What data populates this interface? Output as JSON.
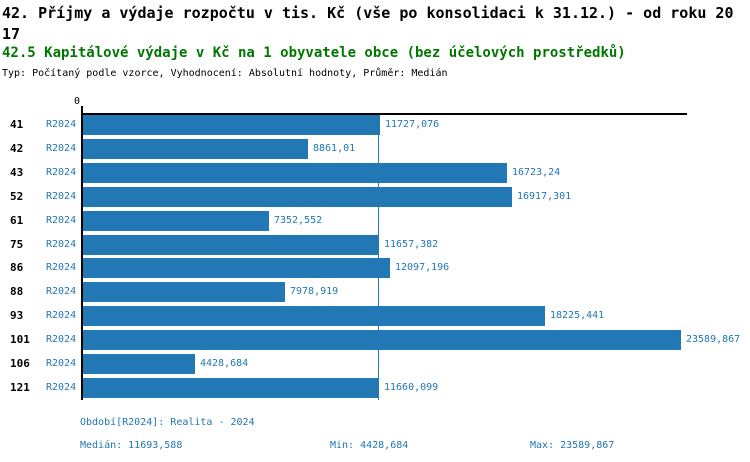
{
  "header": {
    "title": "42. Příjmy a výdaje rozpočtu v tis. Kč (vše po konsolidaci k 31.12.) - od roku 2017",
    "indicator": "42.5 Kapitálové výdaje v Kč na 1 obyvatele obce (bez účelových prostředků)",
    "meta": "Typ: Počítaný podle vzorce, Vyhodnocení: Absolutní hodnoty, Průměr: Medián"
  },
  "chart_data": {
    "type": "bar",
    "orientation": "horizontal",
    "title": "42.5 Kapitálové výdaje v Kč na 1 obyvatele obce (bez účelových prostředků)",
    "categories": [
      "41",
      "42",
      "43",
      "52",
      "61",
      "75",
      "86",
      "88",
      "93",
      "101",
      "106",
      "121"
    ],
    "series_label": "R2024",
    "values": [
      11727.076,
      8861.01,
      16723.24,
      16917.301,
      7352.552,
      11657.382,
      12097.196,
      7978.919,
      18225.441,
      23589.867,
      4428.684,
      11660.099
    ],
    "value_labels": [
      "11727,076",
      "8861,01",
      "16723,24",
      "16917,301",
      "7352,552",
      "11657,382",
      "12097,196",
      "7978,919",
      "18225,441",
      "23589,867",
      "4428,684",
      "11660,099"
    ],
    "xlim": [
      0,
      23589.867
    ],
    "zero_label": "0",
    "median_value": 11693.588,
    "grid": false,
    "legend_position": "none"
  },
  "footer": {
    "period": "Období[R2024]: Realita - 2024",
    "median": "Medián: 11693,588",
    "min": "Min: 4428,684",
    "max": "Max: 23589,867"
  },
  "colors": {
    "accent": "#1f77b4",
    "bar": "#2277b5",
    "green": "#007700"
  }
}
